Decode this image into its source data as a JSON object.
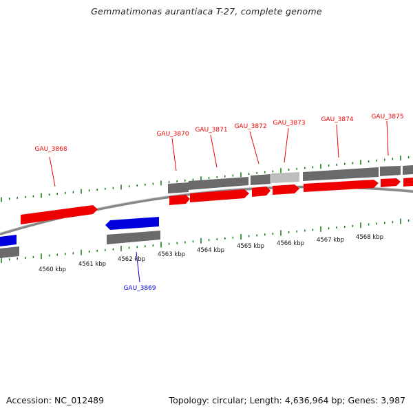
{
  "title": "Gemmatimonas aurantiaca T-27, complete genome",
  "footer": {
    "accession": "Accession: NC_012489",
    "summary": "Topology: circular; Length: 4,636,964 bp; Genes: 3,987"
  },
  "colors": {
    "forward_gene": "#ee0000",
    "reverse_gene": "#0000dd",
    "cds_gray": "#6a6a6a",
    "cds_light": "#bdbdbd",
    "tick_green": "#0a7a0a",
    "backbone": "#888888"
  },
  "scale": {
    "unit": "kbp",
    "ticks": [
      {
        "label": "4560 kbp"
      },
      {
        "label": "4561 kbp"
      },
      {
        "label": "4562 kbp"
      },
      {
        "label": "4563 kbp"
      },
      {
        "label": "4564 kbp"
      },
      {
        "label": "4565 kbp"
      },
      {
        "label": "4566 kbp"
      },
      {
        "label": "4567 kbp"
      },
      {
        "label": "4568 kbp"
      }
    ]
  },
  "genes": [
    {
      "name": "GAU_3868",
      "strand": "+"
    },
    {
      "name": "GAU_3869",
      "strand": "-"
    },
    {
      "name": "GAU_3870",
      "strand": "+"
    },
    {
      "name": "GAU_3871",
      "strand": "+"
    },
    {
      "name": "GAU_3872",
      "strand": "+"
    },
    {
      "name": "GAU_3873",
      "strand": "+"
    },
    {
      "name": "GAU_3874",
      "strand": "+"
    },
    {
      "name": "GAU_3875",
      "strand": "+"
    }
  ]
}
